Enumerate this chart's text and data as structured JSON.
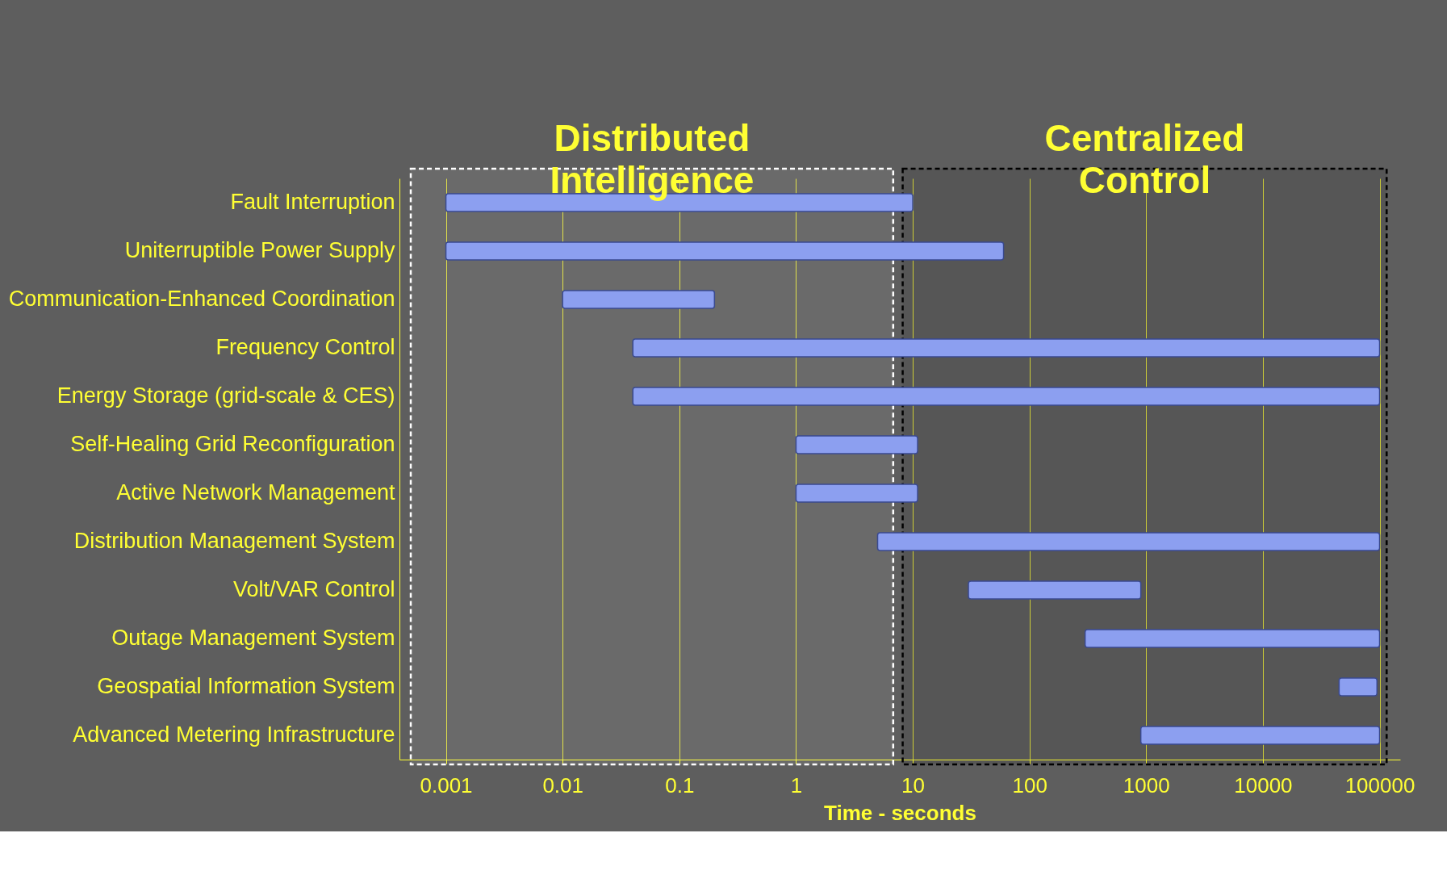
{
  "chart_data": {
    "type": "bar",
    "orientation": "horizontal",
    "log": "x",
    "grid": "x",
    "color": "#8c9ff0",
    "xlabel": "Time - seconds",
    "categories": [
      "Fault Interruption",
      "Uniterruptible Power Supply",
      "Communication-Enhanced Coordination",
      "Frequency Control",
      "Energy Storage (grid-scale & CES)",
      "Self-Healing Grid Reconfiguration",
      "Active Network Management",
      "Distribution Management System",
      "Volt/VAR Control",
      "Outage Management System",
      "Geospatial Information System",
      "Advanced Metering Infrastructure"
    ],
    "base": [
      0.001,
      0.001,
      0.01,
      0.04,
      0.04,
      1,
      1,
      5,
      30,
      300,
      45000,
      900
    ],
    "values": [
      9.999,
      59.999,
      0.19,
      99999.96,
      99999.96,
      10,
      10,
      99995,
      870,
      99700,
      50000,
      99100
    ],
    "xlim": [
      0.0004,
      150000
    ],
    "xticks": [
      0.001,
      0.01,
      0.1,
      1,
      10,
      100,
      1000,
      10000,
      100000
    ],
    "bands": [
      {
        "axis": "x",
        "from": 0.0005,
        "to": 6.8,
        "label": "Distributed Intelligence",
        "color": "#ffffff"
      },
      {
        "axis": "x",
        "from": 8.2,
        "to": 115000,
        "label": "Centralized Control",
        "color": "#000000"
      }
    ]
  }
}
